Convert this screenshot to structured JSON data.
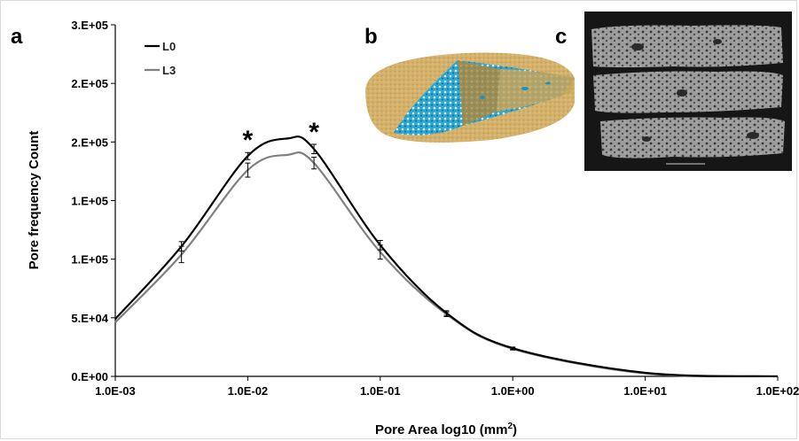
{
  "chart_data": {
    "type": "line",
    "xscale": "log",
    "xlim": [
      "1.0E-03",
      "1.0E+02"
    ],
    "ylim": [
      0,
      300000
    ],
    "xlabel": "Pore Area log10 (mm",
    "xlabel_sup": "2",
    "xlabel_end": ")",
    "ylabel": "Pore frequency Count",
    "x_tick_labels": [
      "1.0E-03",
      "1.0E-02",
      "1.0E-01",
      "1.0E+00",
      "1.0E+01",
      "1.0E+02"
    ],
    "y_tick_labels": [
      "0.E+00",
      "5.E+04",
      "1.E+05",
      "1.E+05",
      "2.E+05",
      "2.E+05",
      "3.E+05"
    ],
    "legend_position": "top-left",
    "series": [
      {
        "name": "L0",
        "color": "#000000",
        "x": [
          0.001,
          0.00316,
          0.01,
          0.02,
          0.0316,
          0.1,
          0.316,
          1,
          10,
          100
        ],
        "y": [
          49000,
          111000,
          188000,
          203000,
          194000,
          112000,
          54000,
          24000,
          3000,
          0
        ],
        "err": [
          0,
          4000,
          3000,
          0,
          4000,
          4000,
          2000,
          1000,
          0,
          0
        ]
      },
      {
        "name": "L3",
        "color": "#808080",
        "x": [
          0.001,
          0.00316,
          0.01,
          0.02,
          0.0316,
          0.1,
          0.316,
          1,
          10,
          100
        ],
        "y": [
          46000,
          104000,
          176000,
          189000,
          182000,
          106000,
          53000,
          23500,
          2500,
          0
        ],
        "err": [
          0,
          7000,
          6000,
          0,
          5000,
          6000,
          2000,
          1000,
          0,
          0
        ]
      }
    ],
    "annotations": [
      {
        "text": "*",
        "x": 0.01
      },
      {
        "text": "*",
        "x": 0.0316
      }
    ]
  },
  "panels": {
    "a": "a",
    "b": "b",
    "c": "c"
  }
}
